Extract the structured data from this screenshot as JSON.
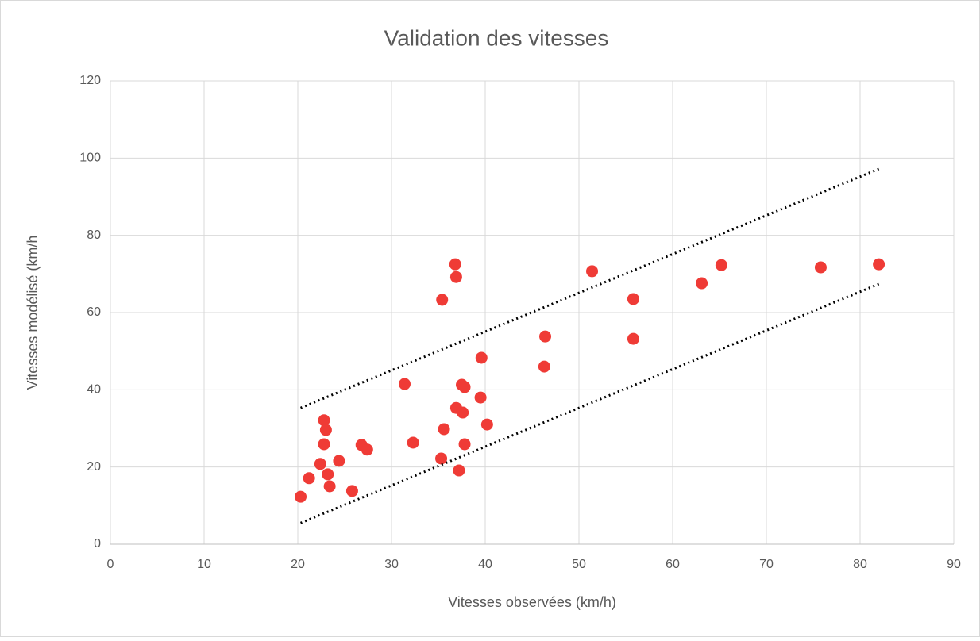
{
  "chart_data": {
    "type": "scatter",
    "title": "Validation des vitesses",
    "x_label": "Vitesses observées (km/h)",
    "y_label": "Vitesses modélisé (km/h",
    "xlim": [
      0,
      90
    ],
    "xticks": [
      0,
      10,
      20,
      30,
      40,
      50,
      60,
      70,
      80,
      90
    ],
    "ylim": [
      0,
      120
    ],
    "yticks": [
      0,
      20,
      40,
      60,
      80,
      100,
      120
    ],
    "grid": true,
    "series": [
      {
        "color": "#ef3b36",
        "style": "markers",
        "x": [
          20.3,
          21.2,
          22.4,
          22.8,
          23.0,
          22.8,
          23.2,
          23.4,
          24.4,
          25.8,
          26.8,
          27.4,
          31.4,
          32.3,
          35.3,
          35.4,
          35.6,
          36.8,
          36.9,
          36.9,
          37.2,
          37.5,
          37.6,
          37.8,
          37.8,
          39.5,
          39.6,
          40.2,
          46.4,
          46.3,
          51.4,
          55.8,
          55.8,
          63.1,
          65.2,
          75.8,
          82.0
        ],
        "y": [
          12.3,
          17.1,
          20.8,
          32.1,
          29.6,
          25.9,
          18.1,
          15.0,
          21.6,
          13.8,
          25.7,
          24.5,
          41.5,
          26.3,
          22.2,
          63.3,
          29.8,
          72.5,
          69.2,
          35.3,
          19.1,
          41.3,
          34.1,
          40.7,
          25.9,
          38.0,
          48.3,
          31.0,
          53.8,
          46.0,
          70.7,
          63.5,
          53.2,
          67.6,
          72.3,
          71.7,
          72.5
        ]
      },
      {
        "color": "#000000",
        "style": "dotted",
        "x": [
          20.3,
          82.0
        ],
        "y": [
          35.3,
          97.2
        ]
      },
      {
        "color": "#000000",
        "style": "dotted",
        "x": [
          20.3,
          82.0
        ],
        "y": [
          5.5,
          67.4
        ]
      }
    ]
  }
}
